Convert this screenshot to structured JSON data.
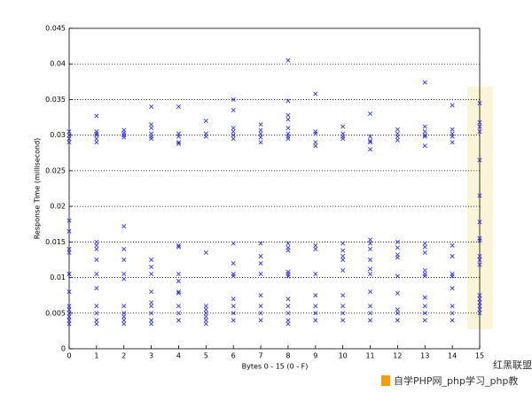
{
  "chart_data": {
    "type": "scatter",
    "xlabel": "Bytes 0 - 15 (0 - F)",
    "ylabel": "Response Time (millisecond)",
    "xlim": [
      0,
      15
    ],
    "xticks": [
      0,
      1,
      2,
      3,
      4,
      5,
      6,
      7,
      8,
      9,
      10,
      11,
      12,
      13,
      14,
      15
    ],
    "ylim": [
      0,
      0.045
    ],
    "yticks": [
      0,
      0.005,
      0.01,
      0.015,
      0.02,
      0.025,
      0.03,
      0.035,
      0.04,
      0.045
    ],
    "grid": true,
    "series": [
      {
        "color": "#3333ee",
        "x": [
          0,
          0,
          0,
          0,
          0,
          0,
          0,
          0,
          0,
          0,
          0,
          0,
          0,
          0,
          0,
          0,
          0,
          1,
          1,
          1,
          1,
          1,
          1,
          1,
          1,
          1,
          1,
          1,
          1,
          1,
          1,
          1,
          1,
          2,
          2,
          2,
          2,
          2,
          2,
          2,
          2,
          2,
          2,
          2,
          2,
          2,
          2,
          3,
          3,
          3,
          3,
          3,
          3,
          3,
          3,
          3,
          3,
          3,
          3,
          3,
          3,
          3,
          4,
          4,
          4,
          4,
          4,
          4,
          4,
          4,
          4,
          4,
          4,
          4,
          4,
          4,
          5,
          5,
          5,
          5,
          5,
          5,
          5,
          5,
          5,
          5,
          6,
          6,
          6,
          6,
          6,
          6,
          6,
          6,
          6,
          6,
          6,
          6,
          6,
          6,
          7,
          7,
          7,
          7,
          7,
          7,
          7,
          7,
          7,
          7,
          7,
          7,
          7,
          8,
          8,
          8,
          8,
          8,
          8,
          8,
          8,
          8,
          8,
          8,
          8,
          8,
          8,
          8,
          8,
          8,
          8,
          8,
          9,
          9,
          9,
          9,
          9,
          9,
          9,
          9,
          9,
          9,
          9,
          9,
          10,
          10,
          10,
          10,
          10,
          10,
          10,
          10,
          10,
          10,
          10,
          10,
          10,
          11,
          11,
          11,
          11,
          11,
          11,
          11,
          11,
          11,
          11,
          11,
          11,
          11,
          11,
          11,
          12,
          12,
          12,
          12,
          12,
          12,
          12,
          12,
          12,
          12,
          12,
          12,
          12,
          13,
          13,
          13,
          13,
          13,
          13,
          13,
          13,
          13,
          13,
          13,
          13,
          13,
          13,
          13,
          13,
          14,
          14,
          14,
          14,
          14,
          14,
          14,
          14,
          14,
          14,
          14,
          14,
          14,
          15,
          15,
          15,
          15,
          15,
          15,
          15,
          15,
          15,
          15,
          15,
          15,
          15,
          15,
          15,
          15,
          15,
          15
        ],
        "values": [
          0.018,
          0.0165,
          0.014,
          0.0135,
          0.0105,
          0.0105,
          0.008,
          0.006,
          0.0055,
          0.005,
          0.0045,
          0.004,
          0.0035,
          0.0305,
          0.03,
          0.0295,
          0.029,
          0.0327,
          0.0305,
          0.0302,
          0.03,
          0.0295,
          0.029,
          0.015,
          0.0145,
          0.014,
          0.0125,
          0.0105,
          0.0085,
          0.006,
          0.005,
          0.004,
          0.0035,
          0.0307,
          0.0303,
          0.03,
          0.0297,
          0.0172,
          0.014,
          0.0125,
          0.0105,
          0.0098,
          0.006,
          0.005,
          0.0045,
          0.004,
          0.0035,
          0.034,
          0.0315,
          0.031,
          0.0302,
          0.0298,
          0.0295,
          0.0125,
          0.0115,
          0.0105,
          0.008,
          0.0065,
          0.006,
          0.005,
          0.004,
          0.0035,
          0.034,
          0.0302,
          0.0298,
          0.029,
          0.0288,
          0.0145,
          0.0143,
          0.0105,
          0.0095,
          0.008,
          0.0078,
          0.006,
          0.005,
          0.004,
          0.032,
          0.0302,
          0.0298,
          0.0135,
          0.006,
          0.0055,
          0.005,
          0.0045,
          0.004,
          0.0035,
          0.035,
          0.0335,
          0.031,
          0.0305,
          0.03,
          0.0295,
          0.0148,
          0.012,
          0.0105,
          0.0102,
          0.007,
          0.006,
          0.005,
          0.004,
          0.0315,
          0.0307,
          0.0302,
          0.0297,
          0.029,
          0.0148,
          0.013,
          0.012,
          0.0105,
          0.0075,
          0.006,
          0.005,
          0.004,
          0.0405,
          0.0348,
          0.0328,
          0.0322,
          0.031,
          0.0302,
          0.0298,
          0.0295,
          0.0148,
          0.0142,
          0.0138,
          0.0108,
          0.0105,
          0.0102,
          0.007,
          0.006,
          0.005,
          0.004,
          0.0035,
          0.0358,
          0.0305,
          0.0302,
          0.029,
          0.0285,
          0.0145,
          0.014,
          0.0105,
          0.0075,
          0.006,
          0.005,
          0.004,
          0.0312,
          0.0302,
          0.0298,
          0.0295,
          0.0148,
          0.0138,
          0.013,
          0.0125,
          0.011,
          0.0075,
          0.006,
          0.005,
          0.004,
          0.033,
          0.0298,
          0.0292,
          0.029,
          0.028,
          0.0153,
          0.0148,
          0.014,
          0.0125,
          0.0112,
          0.0105,
          0.008,
          0.006,
          0.005,
          0.004,
          0.0308,
          0.0302,
          0.0298,
          0.0293,
          0.015,
          0.0142,
          0.0132,
          0.0128,
          0.0102,
          0.0078,
          0.0055,
          0.005,
          0.004,
          0.0374,
          0.0312,
          0.0305,
          0.03,
          0.0298,
          0.0285,
          0.0148,
          0.0143,
          0.0135,
          0.011,
          0.0105,
          0.0102,
          0.0072,
          0.006,
          0.005,
          0.004,
          0.0342,
          0.0308,
          0.0302,
          0.0298,
          0.029,
          0.0145,
          0.013,
          0.0105,
          0.0102,
          0.0085,
          0.006,
          0.005,
          0.004,
          0.0345,
          0.0318,
          0.0312,
          0.0305,
          0.0265,
          0.0215,
          0.0178,
          0.0155,
          0.0152,
          0.013,
          0.0125,
          0.0118,
          0.0075,
          0.007,
          0.0065,
          0.006,
          0.0055,
          0.005
        ]
      }
    ]
  },
  "watermark": {
    "brand": "红黑联盟",
    "site": "自学PHP网_php学习_php教"
  }
}
